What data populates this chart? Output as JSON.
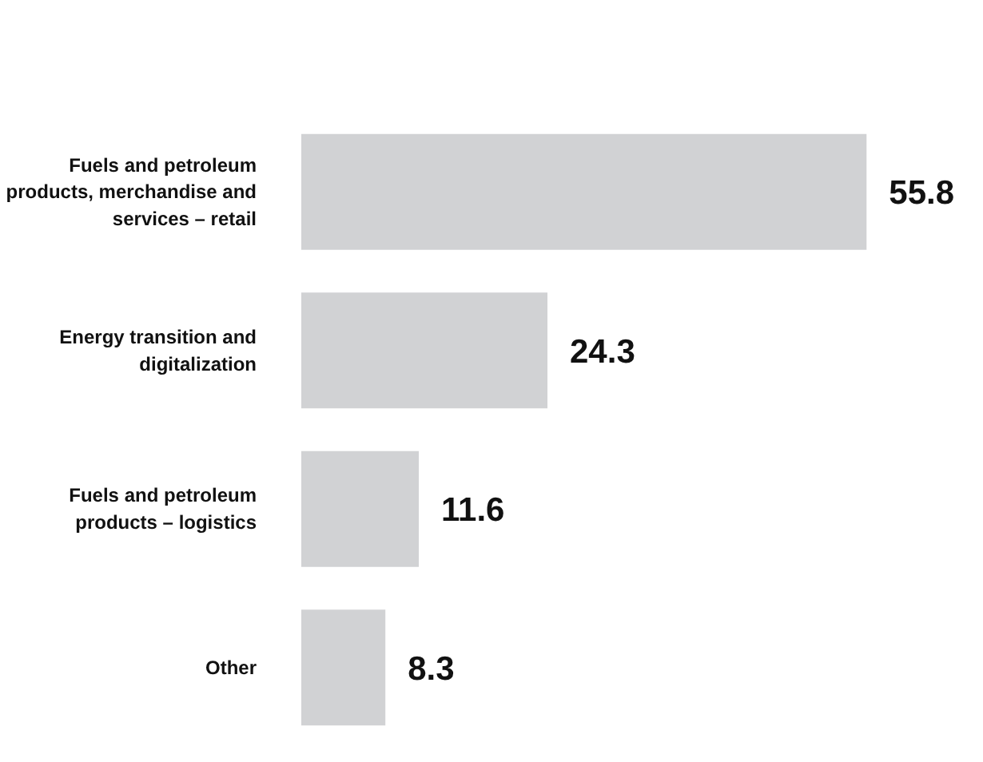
{
  "chart_data": {
    "type": "bar",
    "orientation": "horizontal",
    "categories": [
      "Fuels and petroleum products, merchandise and services – retail",
      "Energy transition and digitalization",
      "Fuels and petroleum products – logistics",
      "Other"
    ],
    "values": [
      55.8,
      24.3,
      11.6,
      8.3
    ],
    "color": "#d1d2d4",
    "data_labels": true,
    "tick_labels": "y",
    "grid": false
  }
}
